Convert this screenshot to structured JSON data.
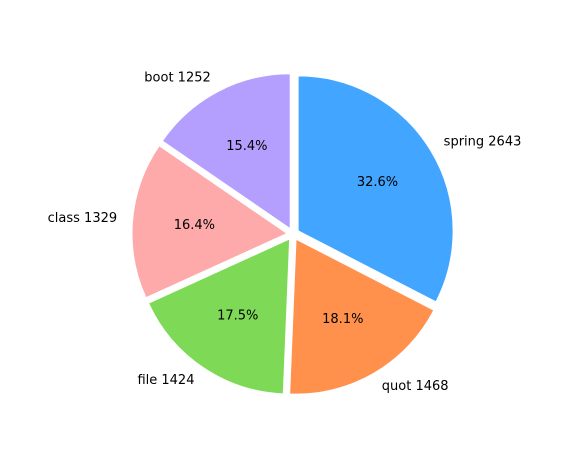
{
  "chart_data": {
    "type": "pie",
    "title": "",
    "start_angle_deg": 90,
    "direction": "clockwise",
    "exploded": true,
    "legend": "none",
    "slices": [
      {
        "name": "spring",
        "value": 2643,
        "label": "spring 2643",
        "pct_label": "32.6%",
        "color": "#42a5ff"
      },
      {
        "name": "quot",
        "value": 1468,
        "label": "quot 1468",
        "pct_label": "18.1%",
        "color": "#ff914d"
      },
      {
        "name": "file",
        "value": 1424,
        "label": "file 1424",
        "pct_label": "17.5%",
        "color": "#7ed957"
      },
      {
        "name": "class",
        "value": 1329,
        "label": "class 1329",
        "pct_label": "16.4%",
        "color": "#ffaaaa"
      },
      {
        "name": "boot",
        "value": 1252,
        "label": "boot 1252",
        "pct_label": "15.4%",
        "color": "#b49fff"
      }
    ]
  }
}
